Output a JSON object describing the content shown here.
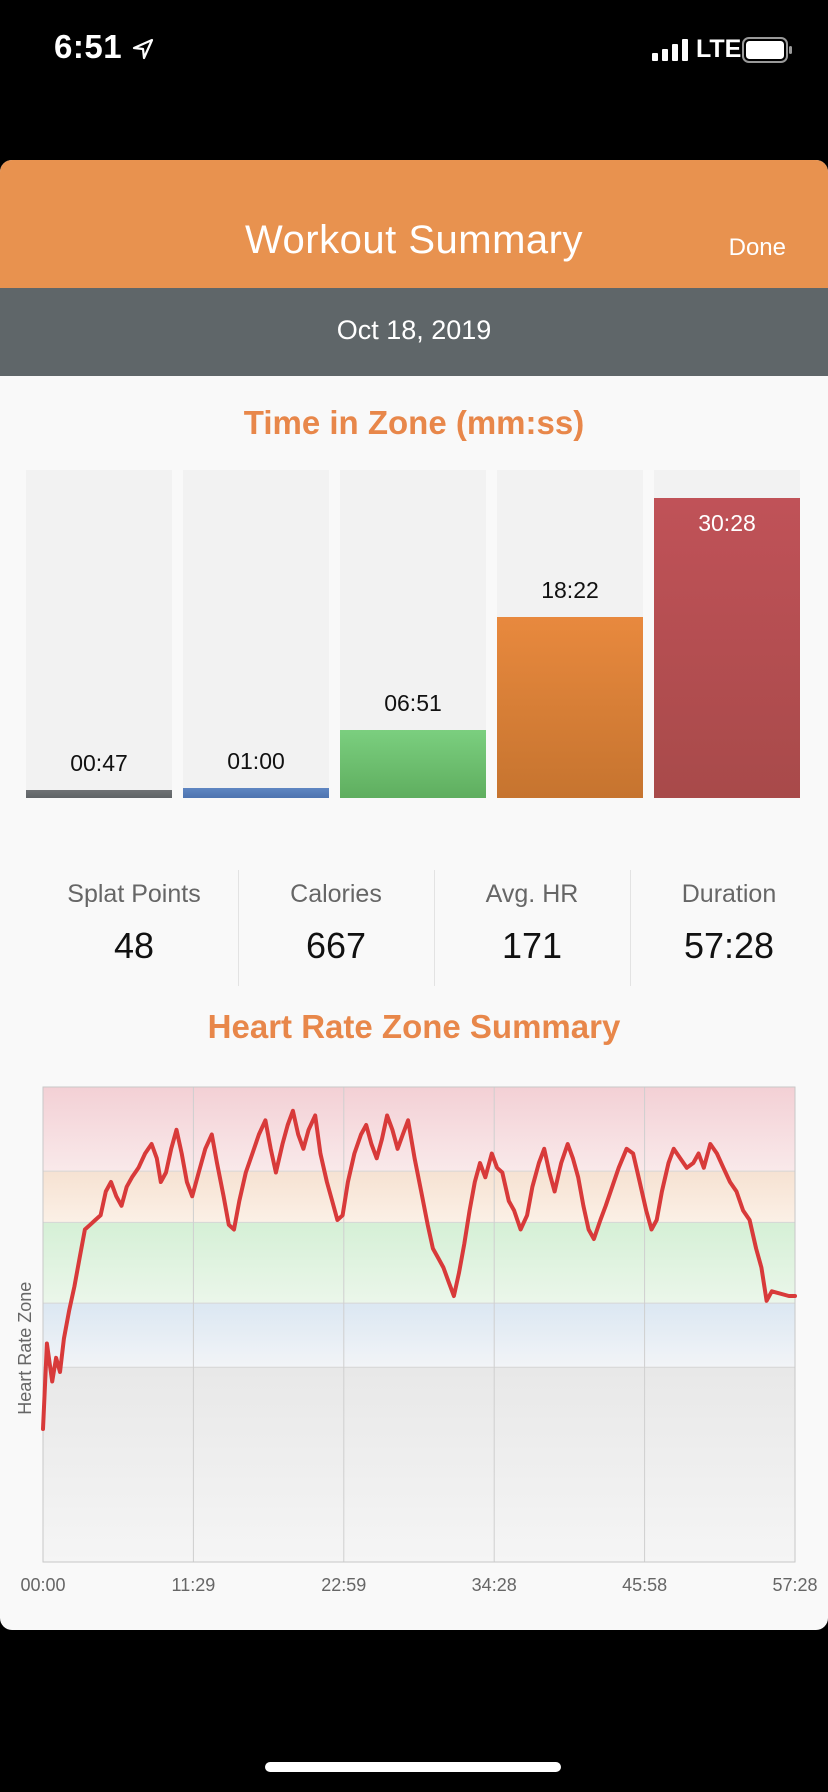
{
  "status_bar": {
    "time": "6:51",
    "network": "LTE"
  },
  "header": {
    "title": "Workout Summary",
    "done_label": "Done"
  },
  "date": "Oct 18, 2019",
  "time_in_zone": {
    "title": "Time in Zone (mm:ss)",
    "zones": [
      {
        "label": "00:47",
        "fraction": 0.026,
        "color_top": "#6f7275",
        "color_bottom": "#5f6366"
      },
      {
        "label": "01:00",
        "fraction": 0.033,
        "color_top": "#5f86c2",
        "color_bottom": "#4d74b0"
      },
      {
        "label": "06:51",
        "fraction": 0.225,
        "color_top": "#7bcf7f",
        "color_bottom": "#5fae5f"
      },
      {
        "label": "18:22",
        "fraction": 0.603,
        "color_top": "#e8893e",
        "color_bottom": "#c6742f"
      },
      {
        "label": "30:28",
        "fraction": 1.0,
        "color_top": "#c05258",
        "color_bottom": "#a84a4a"
      }
    ]
  },
  "stats": [
    {
      "label": "Splat Points",
      "value": "48"
    },
    {
      "label": "Calories",
      "value": "667"
    },
    {
      "label": "Avg. HR",
      "value": "171"
    },
    {
      "label": "Duration",
      "value": "57:28"
    }
  ],
  "chart_data": {
    "type": "line",
    "title": "Heart Rate Zone Summary",
    "ylabel": "Heart Rate Zone",
    "xlabel": "",
    "x_ticks": [
      "00:00",
      "11:29",
      "22:59",
      "34:28",
      "45:58",
      "57:28"
    ],
    "xlim": [
      0,
      57.47
    ],
    "ylim": [
      0,
      1
    ],
    "grid": true,
    "zone_bands": [
      {
        "from": 0.0,
        "to": 0.41,
        "color_top": "#e8e8e8",
        "color_bottom": "#f5f5f5"
      },
      {
        "from": 0.41,
        "to": 0.545,
        "color_top": "#dbe7f2",
        "color_bottom": "#f2f4f7"
      },
      {
        "from": 0.545,
        "to": 0.715,
        "color_top": "#d5f0d6",
        "color_bottom": "#ebf6ea"
      },
      {
        "from": 0.715,
        "to": 0.823,
        "color_top": "#f6e2d2",
        "color_bottom": "#fbf0e6"
      },
      {
        "from": 0.823,
        "to": 1.0,
        "color_top": "#f3d0d5",
        "color_bottom": "#f9e9ea"
      }
    ],
    "series": [
      {
        "color": "#d83a3a",
        "points": [
          [
            0.0,
            0.28
          ],
          [
            0.3,
            0.46
          ],
          [
            0.7,
            0.38
          ],
          [
            1.0,
            0.43
          ],
          [
            1.3,
            0.4
          ],
          [
            1.6,
            0.47
          ],
          [
            2.0,
            0.53
          ],
          [
            2.4,
            0.58
          ],
          [
            2.8,
            0.64
          ],
          [
            3.2,
            0.7
          ],
          [
            3.6,
            0.71
          ],
          [
            4.0,
            0.72
          ],
          [
            4.4,
            0.73
          ],
          [
            4.8,
            0.78
          ],
          [
            5.2,
            0.8
          ],
          [
            5.6,
            0.77
          ],
          [
            6.0,
            0.75
          ],
          [
            6.4,
            0.79
          ],
          [
            6.8,
            0.81
          ],
          [
            7.3,
            0.83
          ],
          [
            7.8,
            0.86
          ],
          [
            8.3,
            0.88
          ],
          [
            8.7,
            0.85
          ],
          [
            9.0,
            0.8
          ],
          [
            9.4,
            0.82
          ],
          [
            9.8,
            0.87
          ],
          [
            10.2,
            0.91
          ],
          [
            10.6,
            0.86
          ],
          [
            11.0,
            0.8
          ],
          [
            11.4,
            0.77
          ],
          [
            11.9,
            0.82
          ],
          [
            12.4,
            0.87
          ],
          [
            12.9,
            0.9
          ],
          [
            13.3,
            0.84
          ],
          [
            13.8,
            0.77
          ],
          [
            14.2,
            0.71
          ],
          [
            14.6,
            0.7
          ],
          [
            15.0,
            0.76
          ],
          [
            15.5,
            0.82
          ],
          [
            16.0,
            0.86
          ],
          [
            16.5,
            0.9
          ],
          [
            17.0,
            0.93
          ],
          [
            17.4,
            0.87
          ],
          [
            17.8,
            0.82
          ],
          [
            18.3,
            0.88
          ],
          [
            18.7,
            0.92
          ],
          [
            19.1,
            0.95
          ],
          [
            19.5,
            0.9
          ],
          [
            19.9,
            0.87
          ],
          [
            20.3,
            0.91
          ],
          [
            20.8,
            0.94
          ],
          [
            21.2,
            0.86
          ],
          [
            21.7,
            0.8
          ],
          [
            22.1,
            0.76
          ],
          [
            22.5,
            0.72
          ],
          [
            22.9,
            0.73
          ],
          [
            23.3,
            0.8
          ],
          [
            23.8,
            0.86
          ],
          [
            24.3,
            0.9
          ],
          [
            24.7,
            0.92
          ],
          [
            25.1,
            0.88
          ],
          [
            25.5,
            0.85
          ],
          [
            25.9,
            0.89
          ],
          [
            26.3,
            0.94
          ],
          [
            26.7,
            0.91
          ],
          [
            27.1,
            0.87
          ],
          [
            27.5,
            0.9
          ],
          [
            27.9,
            0.93
          ],
          [
            28.4,
            0.85
          ],
          [
            28.9,
            0.78
          ],
          [
            29.4,
            0.71
          ],
          [
            29.8,
            0.66
          ],
          [
            30.2,
            0.64
          ],
          [
            30.6,
            0.62
          ],
          [
            31.0,
            0.59
          ],
          [
            31.4,
            0.56
          ],
          [
            31.8,
            0.61
          ],
          [
            32.2,
            0.67
          ],
          [
            32.6,
            0.74
          ],
          [
            33.0,
            0.8
          ],
          [
            33.4,
            0.84
          ],
          [
            33.8,
            0.81
          ],
          [
            34.3,
            0.86
          ],
          [
            34.7,
            0.83
          ],
          [
            35.1,
            0.82
          ],
          [
            35.6,
            0.76
          ],
          [
            36.0,
            0.74
          ],
          [
            36.5,
            0.7
          ],
          [
            37.0,
            0.73
          ],
          [
            37.4,
            0.79
          ],
          [
            37.9,
            0.84
          ],
          [
            38.3,
            0.87
          ],
          [
            38.7,
            0.82
          ],
          [
            39.1,
            0.78
          ],
          [
            39.6,
            0.84
          ],
          [
            40.1,
            0.88
          ],
          [
            40.5,
            0.85
          ],
          [
            40.9,
            0.81
          ],
          [
            41.3,
            0.75
          ],
          [
            41.7,
            0.7
          ],
          [
            42.1,
            0.68
          ],
          [
            42.6,
            0.72
          ],
          [
            43.0,
            0.75
          ],
          [
            43.5,
            0.79
          ],
          [
            44.0,
            0.83
          ],
          [
            44.6,
            0.87
          ],
          [
            45.1,
            0.86
          ],
          [
            45.6,
            0.8
          ],
          [
            46.1,
            0.74
          ],
          [
            46.5,
            0.7
          ],
          [
            46.9,
            0.72
          ],
          [
            47.3,
            0.78
          ],
          [
            47.8,
            0.84
          ],
          [
            48.2,
            0.87
          ],
          [
            48.7,
            0.85
          ],
          [
            49.2,
            0.83
          ],
          [
            49.7,
            0.84
          ],
          [
            50.1,
            0.86
          ],
          [
            50.5,
            0.83
          ],
          [
            51.0,
            0.88
          ],
          [
            51.5,
            0.86
          ],
          [
            52.0,
            0.83
          ],
          [
            52.5,
            0.8
          ],
          [
            53.0,
            0.78
          ],
          [
            53.5,
            0.74
          ],
          [
            54.0,
            0.72
          ],
          [
            54.5,
            0.66
          ],
          [
            54.9,
            0.62
          ],
          [
            55.3,
            0.55
          ],
          [
            55.7,
            0.57
          ],
          [
            57.0,
            0.56
          ],
          [
            57.47,
            0.56
          ]
        ]
      }
    ]
  }
}
